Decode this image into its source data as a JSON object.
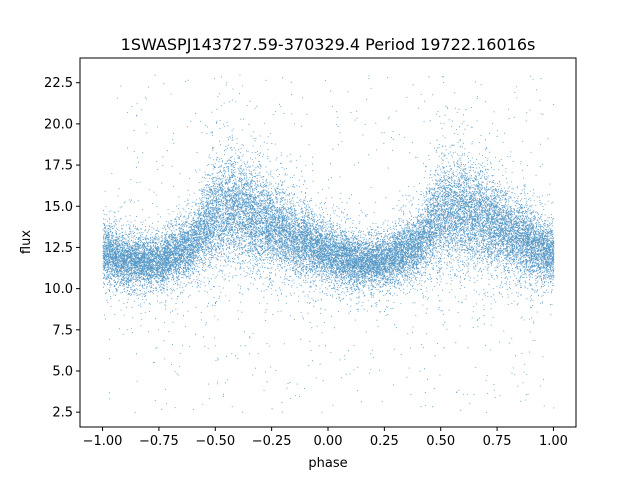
{
  "chart_data": {
    "type": "scatter",
    "title": "1SWASPJ143727.59-370329.4 Period 19722.16016s",
    "xlabel": "phase",
    "ylabel": "flux",
    "xlim": [
      -1.1,
      1.1
    ],
    "ylim": [
      1.6,
      24
    ],
    "xticks": [
      -1.0,
      -0.75,
      -0.5,
      -0.25,
      0.0,
      0.25,
      0.5,
      0.75,
      1.0
    ],
    "xtick_labels": [
      "−1.00",
      "−0.75",
      "−0.50",
      "−0.25",
      "0.00",
      "0.25",
      "0.50",
      "0.75",
      "1.00"
    ],
    "yticks": [
      2.5,
      5.0,
      7.5,
      10.0,
      12.5,
      15.0,
      17.5,
      20.0,
      22.5
    ],
    "ytick_labels": [
      "2.5",
      "5.0",
      "7.5",
      "10.0",
      "12.5",
      "15.0",
      "17.5",
      "20.0",
      "22.5"
    ],
    "grid": false,
    "point_color": "#1f77b4",
    "phase_range": [
      -1.0,
      1.0
    ],
    "flux_profile": [
      {
        "phase": 0.0,
        "low": 10.2,
        "high": 14.2
      },
      {
        "phase": 0.1,
        "low": 9.8,
        "high": 13.6
      },
      {
        "phase": 0.25,
        "low": 9.8,
        "high": 13.4
      },
      {
        "phase": 0.4,
        "low": 10.5,
        "high": 15.0
      },
      {
        "phase": 0.5,
        "low": 11.0,
        "high": 18.3
      },
      {
        "phase": 0.6,
        "low": 11.0,
        "high": 18.6
      },
      {
        "phase": 0.75,
        "low": 10.8,
        "high": 16.8
      },
      {
        "phase": 0.9,
        "low": 10.3,
        "high": 15.2
      },
      {
        "phase": 1.0,
        "low": 10.2,
        "high": 14.2
      }
    ]
  }
}
